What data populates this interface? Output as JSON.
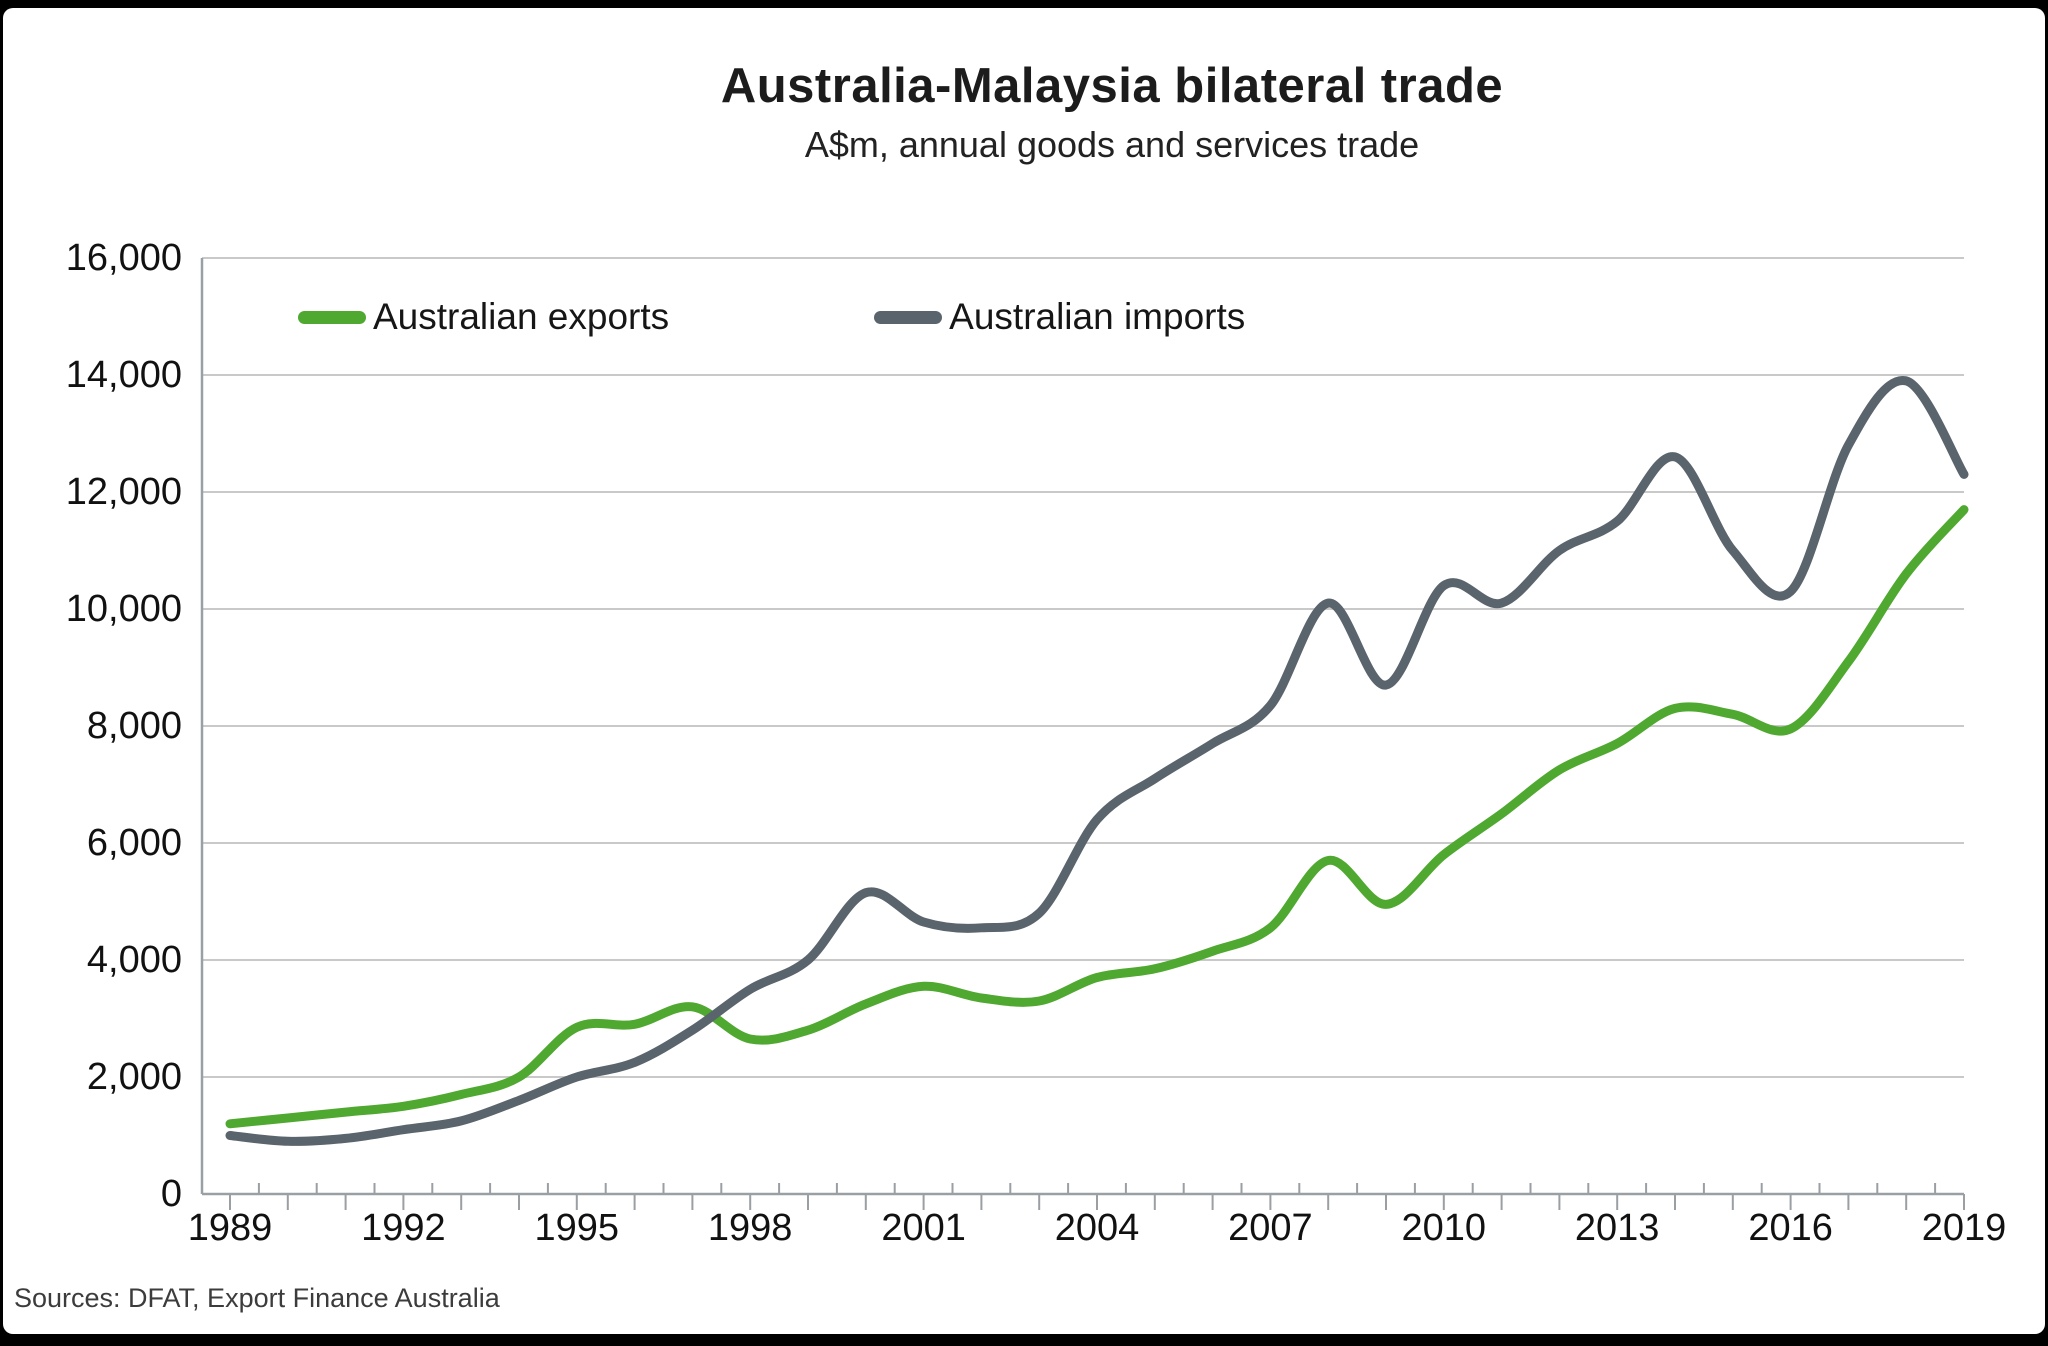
{
  "header": {
    "title": "Australia-Malaysia bilateral trade",
    "subtitle": "A$m, annual goods and services trade"
  },
  "source_note": "Sources: DFAT, Export Finance Australia",
  "colors": {
    "exports_line": "#4FA82F",
    "imports_line": "#59646C",
    "gridline": "#c9c9c9",
    "axis": "#9a9fa3",
    "background": "#ffffff",
    "frame": "#000000"
  },
  "chart_data": {
    "type": "line",
    "title": "Australia-Malaysia bilateral trade",
    "subtitle": "A$m, annual goods and services trade",
    "xlabel": "",
    "ylabel": "A$m",
    "ylim": [
      0,
      16000
    ],
    "ytick_interval": 2000,
    "grid": "horizontal",
    "legend_position": "top-left-inside",
    "x": [
      1989,
      1990,
      1991,
      1992,
      1993,
      1994,
      1995,
      1996,
      1997,
      1998,
      1999,
      2000,
      2001,
      2002,
      2003,
      2004,
      2005,
      2006,
      2007,
      2008,
      2009,
      2010,
      2011,
      2012,
      2013,
      2014,
      2015,
      2016,
      2017,
      2018,
      2019
    ],
    "series": [
      {
        "name": "Australian exports",
        "color": "#4FA82F",
        "values": [
          1200,
          1300,
          1400,
          1500,
          1700,
          2000,
          2850,
          2900,
          3200,
          2650,
          2800,
          3250,
          3550,
          3350,
          3300,
          3700,
          3850,
          4150,
          4550,
          5700,
          4950,
          5800,
          6500,
          7250,
          7700,
          8300,
          8200,
          7950,
          9100,
          10600,
          11700
        ]
      },
      {
        "name": "Australian imports",
        "color": "#59646C",
        "values": [
          1000,
          900,
          950,
          1100,
          1250,
          1600,
          2000,
          2250,
          2800,
          3500,
          4000,
          5150,
          4650,
          4550,
          4800,
          6400,
          7100,
          7700,
          8350,
          10100,
          8700,
          10400,
          10100,
          11000,
          11500,
          12600,
          11000,
          10300,
          12800,
          13900,
          12300
        ]
      }
    ],
    "y_tick_labels": [
      "0",
      "2,000",
      "4,000",
      "6,000",
      "8,000",
      "10,000",
      "12,000",
      "14,000",
      "16,000"
    ],
    "x_tick_labels": [
      "1989",
      "1992",
      "1995",
      "1998",
      "2001",
      "2004",
      "2007",
      "2010",
      "2013",
      "2016",
      "2019"
    ],
    "x_tick_label_years": [
      1989,
      1992,
      1995,
      1998,
      2001,
      2004,
      2007,
      2010,
      2013,
      2016,
      2019
    ]
  }
}
